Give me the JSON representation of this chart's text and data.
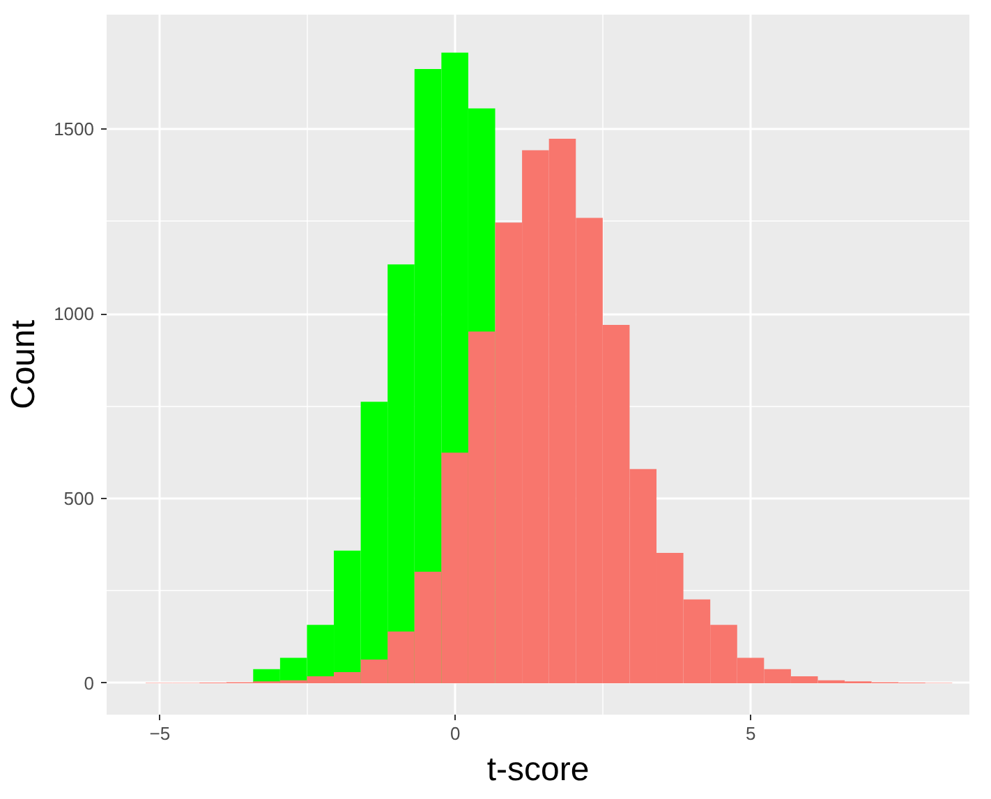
{
  "chart_data": {
    "type": "histogram",
    "xlabel": "t-score",
    "ylabel": "Count",
    "bins": [
      -5.24,
      -4.785,
      -4.33,
      -3.875,
      -3.42,
      -2.965,
      -2.51,
      -2.055,
      -1.6,
      -1.145,
      -0.69,
      -0.235,
      0.22,
      0.675,
      1.13,
      1.585,
      2.04,
      2.495,
      2.95,
      3.405,
      3.86,
      4.315,
      4.77,
      5.225,
      5.68,
      6.135,
      6.59,
      7.045,
      7.5,
      7.955,
      8.41
    ],
    "series": [
      {
        "color": "#00ff00",
        "values": [
          null,
          null,
          null,
          null,
          38,
          69,
          158,
          359,
          762,
          1134,
          1663,
          1707,
          1556,
          null,
          null,
          null,
          null,
          null,
          null,
          null,
          null,
          null,
          null,
          null,
          null,
          null,
          null,
          null,
          null,
          null
        ]
      },
      {
        "color": "#f8766d",
        "values": [
          1,
          1,
          2,
          3,
          5,
          8,
          19,
          30,
          64,
          140,
          302,
          624,
          952,
          1247,
          1443,
          1474,
          1260,
          970,
          580,
          353,
          227,
          158,
          69,
          38,
          19,
          8,
          5,
          3,
          2,
          1
        ]
      }
    ],
    "xlim": [
      -5.9,
      8.7
    ],
    "ylim": [
      -85,
      1810
    ],
    "xticks": [
      -5,
      0,
      5
    ],
    "yticks": [
      0,
      500,
      1000,
      1500
    ],
    "grid": true
  }
}
